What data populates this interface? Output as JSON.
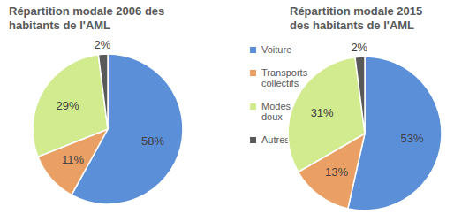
{
  "chart_data": [
    {
      "type": "pie",
      "title": "Répartition modale 2006 des habitants de l'AML",
      "categories": [
        "Voiture",
        "Transports collectifs",
        "Modes doux",
        "Autres"
      ],
      "values": [
        58,
        11,
        29,
        2
      ],
      "value_labels": [
        "58%",
        "11%",
        "29%",
        "2%"
      ],
      "colors": [
        "#5b8fd8",
        "#eaa064",
        "#d2eb8e",
        "#595959"
      ],
      "data_labels": true,
      "legend": "right"
    },
    {
      "type": "pie",
      "title": "Répartition modale 2015 des habitants de l'AML",
      "categories": [
        "Voiture",
        "Transports collectifs",
        "Modes doux",
        "Autres"
      ],
      "values": [
        53,
        13,
        31,
        2
      ],
      "value_labels": [
        "53%",
        "13%",
        "31%",
        "2%"
      ],
      "colors": [
        "#5b8fd8",
        "#eaa064",
        "#d2eb8e",
        "#595959"
      ],
      "data_labels": true
    }
  ]
}
